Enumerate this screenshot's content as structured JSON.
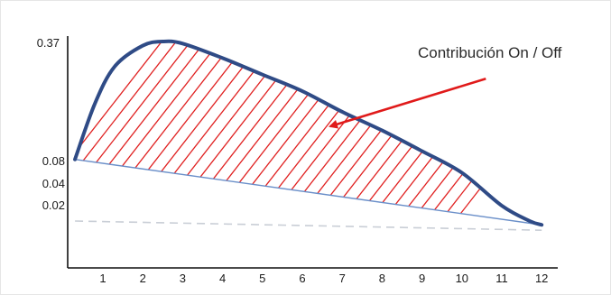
{
  "chart_data": {
    "type": "line",
    "x_ticks": [
      "1",
      "2",
      "3",
      "4",
      "5",
      "6",
      "7",
      "8",
      "9",
      "10",
      "11",
      "12"
    ],
    "y_ticks": [
      {
        "label": "0.37",
        "value": 0.37
      },
      {
        "label": "0.08",
        "value": 0.08
      },
      {
        "label": "0.04",
        "value": 0.04
      },
      {
        "label": "0.02",
        "value": 0.02
      }
    ],
    "series": [
      {
        "name": "",
        "style": "thick-curve",
        "color": "#2f4b86",
        "x": [
          0.3,
          0.8,
          1.3,
          2.0,
          2.5,
          3.0,
          4.0,
          5.0,
          6.0,
          7.0,
          8.0,
          9.0,
          10.0,
          11.0,
          11.7,
          12.0
        ],
        "y": [
          0.085,
          0.22,
          0.31,
          0.36,
          0.37,
          0.365,
          0.33,
          0.29,
          0.25,
          0.2,
          0.155,
          0.105,
          0.06,
          0.02,
          0.0,
          -0.005
        ]
      },
      {
        "name": "",
        "style": "baseline",
        "color": "#6a8fc9",
        "x": [
          0.3,
          12.0
        ],
        "y": [
          0.085,
          -0.005
        ]
      },
      {
        "name": "",
        "style": "dashed",
        "color": "#c9ced6",
        "x": [
          0.3,
          12.0
        ],
        "y": [
          0.0,
          -0.012
        ]
      }
    ],
    "hatch_color": "#e02020",
    "annotation": {
      "text": "Contribución On / Off",
      "arrow_from": {
        "x": 10.6,
        "y": 0.28
      },
      "arrow_to": {
        "x": 6.7,
        "y": 0.165
      },
      "color": "#e01a1a"
    }
  }
}
